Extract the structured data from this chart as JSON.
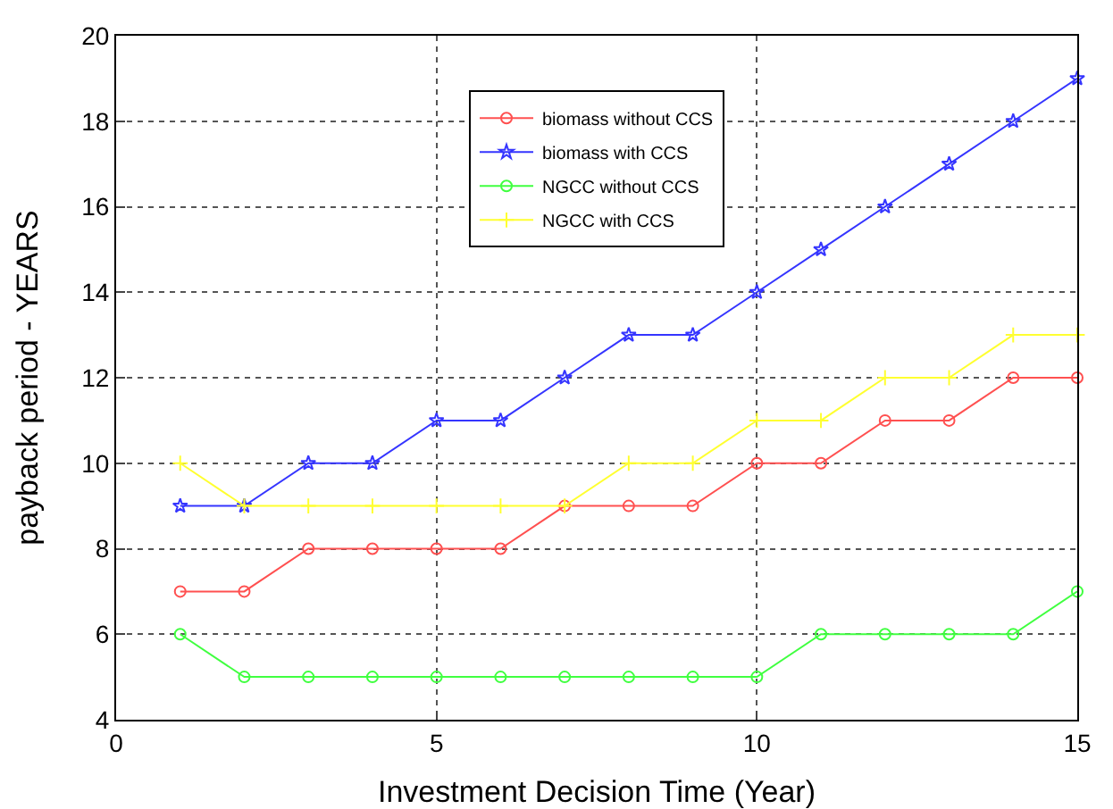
{
  "chart_data": {
    "type": "line",
    "xlabel": "Investment Decision Time (Year)",
    "ylabel": "payback period - YEARS",
    "x": [
      1,
      2,
      3,
      4,
      5,
      6,
      7,
      8,
      9,
      10,
      11,
      12,
      13,
      14,
      15
    ],
    "series": [
      {
        "name": "biomass without CCS",
        "color": "#ff5050",
        "marker": "circle",
        "values": [
          7,
          7,
          8,
          8,
          8,
          8,
          9,
          9,
          9,
          10,
          10,
          11,
          11,
          12,
          12
        ]
      },
      {
        "name": "biomass with CCS",
        "color": "#3535ff",
        "marker": "star",
        "values": [
          9,
          9,
          10,
          10,
          11,
          11,
          12,
          13,
          13,
          14,
          15,
          16,
          17,
          18,
          19
        ]
      },
      {
        "name": "NGCC without CCS",
        "color": "#40ff40",
        "marker": "circle",
        "values": [
          6,
          5,
          5,
          5,
          5,
          5,
          5,
          5,
          5,
          5,
          6,
          6,
          6,
          6,
          7
        ]
      },
      {
        "name": "NGCC with CCS",
        "color": "#ffff30",
        "marker": "cross",
        "values": [
          10,
          9,
          9,
          9,
          9,
          9,
          9,
          10,
          10,
          11,
          11,
          12,
          12,
          13,
          13
        ]
      }
    ],
    "xlim": [
      0,
      15
    ],
    "xticks": [
      0,
      5,
      10,
      15
    ],
    "ylim": [
      4,
      20
    ],
    "yticks": [
      4,
      6,
      8,
      10,
      12,
      14,
      16,
      18,
      20
    ],
    "grid": true,
    "legend": "top",
    "line_style": "solid"
  }
}
